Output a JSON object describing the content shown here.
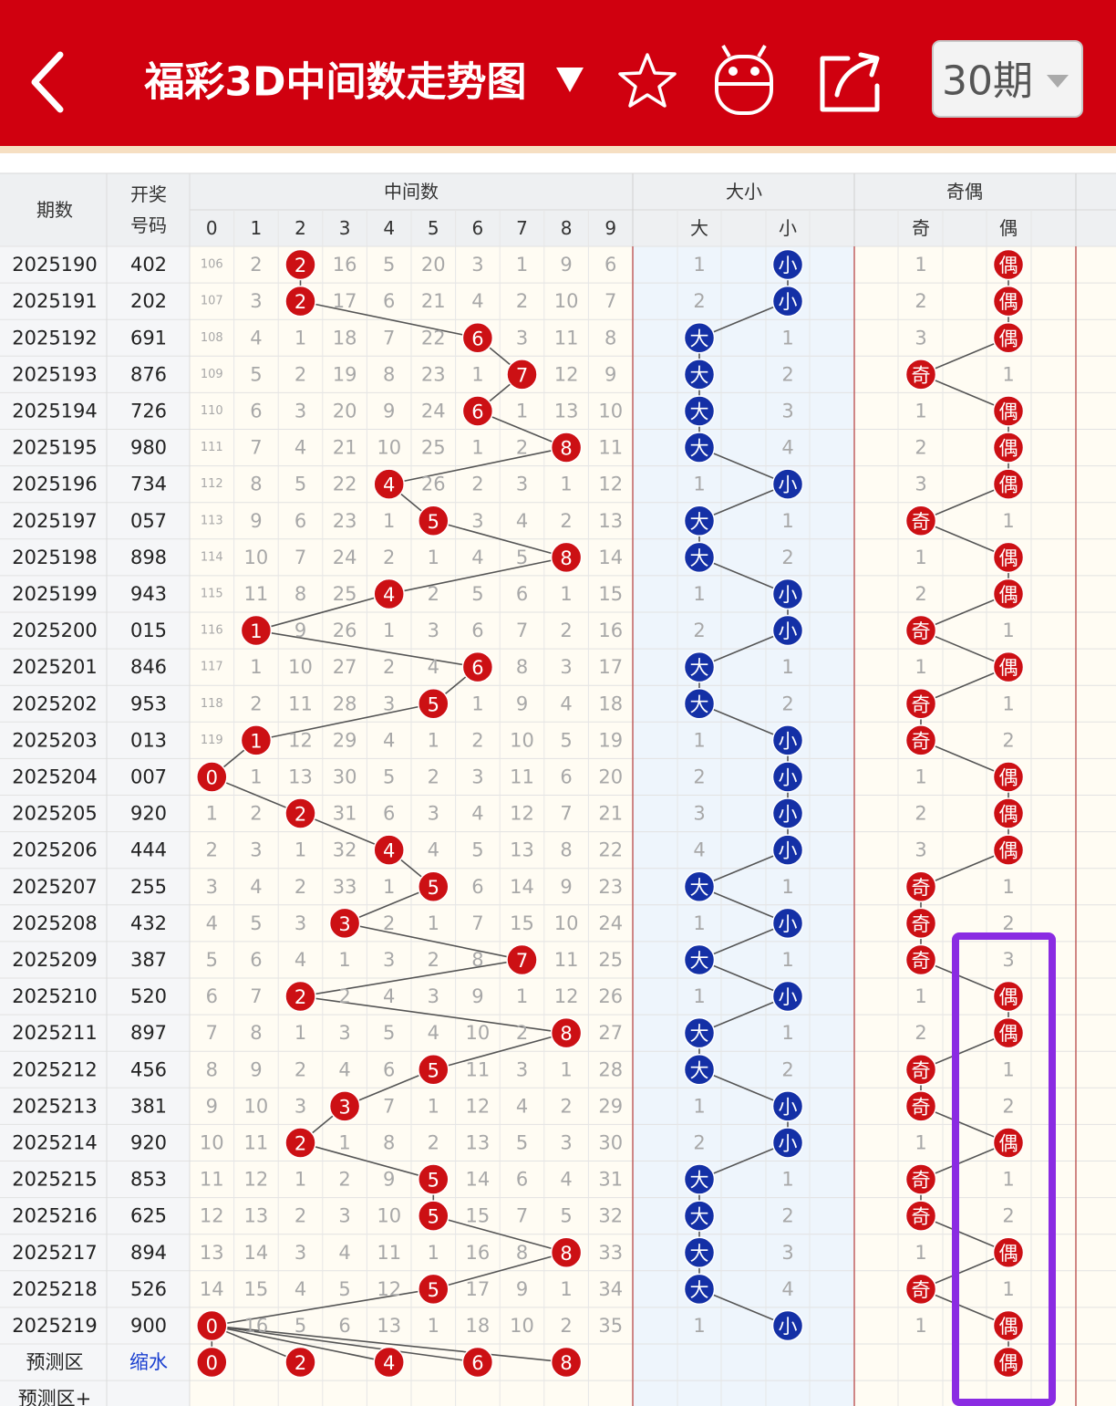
{
  "header": {
    "title": "福彩3D中间数走势图",
    "period_selector": "30期"
  },
  "table": {
    "head": {
      "period": "期数",
      "number": [
        "开奖",
        "号码"
      ],
      "mid_title": "中间数",
      "mid_digits": [
        0,
        1,
        2,
        3,
        4,
        5,
        6,
        7,
        8,
        9
      ],
      "size_title": "大小",
      "size_cols": [
        "大",
        "小"
      ],
      "parity_title": "奇偶",
      "parity_cols": [
        "奇",
        "偶"
      ]
    },
    "rows": [
      {
        "period": "2025190",
        "number": "402",
        "mid": [
          106,
          2,
          "2",
          16,
          5,
          20,
          3,
          1,
          9,
          6
        ],
        "size": [
          1,
          "小"
        ],
        "parity": [
          1,
          "偶"
        ]
      },
      {
        "period": "2025191",
        "number": "202",
        "mid": [
          107,
          3,
          "2",
          17,
          6,
          21,
          4,
          2,
          10,
          7
        ],
        "size": [
          2,
          "小"
        ],
        "parity": [
          2,
          "偶"
        ]
      },
      {
        "period": "2025192",
        "number": "691",
        "mid": [
          108,
          4,
          1,
          18,
          7,
          22,
          "6",
          3,
          11,
          8
        ],
        "size": [
          "大",
          1
        ],
        "parity": [
          3,
          "偶"
        ]
      },
      {
        "period": "2025193",
        "number": "876",
        "mid": [
          109,
          5,
          2,
          19,
          8,
          23,
          1,
          "7",
          12,
          9
        ],
        "size": [
          "大",
          2
        ],
        "parity": [
          "奇",
          1
        ]
      },
      {
        "period": "2025194",
        "number": "726",
        "mid": [
          110,
          6,
          3,
          20,
          9,
          24,
          "6",
          1,
          13,
          10
        ],
        "size": [
          "大",
          3
        ],
        "parity": [
          1,
          "偶"
        ]
      },
      {
        "period": "2025195",
        "number": "980",
        "mid": [
          111,
          7,
          4,
          21,
          10,
          25,
          1,
          2,
          "8",
          11
        ],
        "size": [
          "大",
          4
        ],
        "parity": [
          2,
          "偶"
        ]
      },
      {
        "period": "2025196",
        "number": "734",
        "mid": [
          112,
          8,
          5,
          22,
          "4",
          26,
          2,
          3,
          1,
          12
        ],
        "size": [
          1,
          "小"
        ],
        "parity": [
          3,
          "偶"
        ]
      },
      {
        "period": "2025197",
        "number": "057",
        "mid": [
          113,
          9,
          6,
          23,
          1,
          "5",
          3,
          4,
          2,
          13
        ],
        "size": [
          "大",
          1
        ],
        "parity": [
          "奇",
          1
        ]
      },
      {
        "period": "2025198",
        "number": "898",
        "mid": [
          114,
          10,
          7,
          24,
          2,
          1,
          4,
          5,
          "8",
          14
        ],
        "size": [
          "大",
          2
        ],
        "parity": [
          1,
          "偶"
        ]
      },
      {
        "period": "2025199",
        "number": "943",
        "mid": [
          115,
          11,
          8,
          25,
          "4",
          2,
          5,
          6,
          1,
          15
        ],
        "size": [
          1,
          "小"
        ],
        "parity": [
          2,
          "偶"
        ]
      },
      {
        "period": "2025200",
        "number": "015",
        "mid": [
          116,
          "1",
          9,
          26,
          1,
          3,
          6,
          7,
          2,
          16
        ],
        "size": [
          2,
          "小"
        ],
        "parity": [
          "奇",
          1
        ]
      },
      {
        "period": "2025201",
        "number": "846",
        "mid": [
          117,
          1,
          10,
          27,
          2,
          4,
          "6",
          8,
          3,
          17
        ],
        "size": [
          "大",
          1
        ],
        "parity": [
          1,
          "偶"
        ]
      },
      {
        "period": "2025202",
        "number": "953",
        "mid": [
          118,
          2,
          11,
          28,
          3,
          "5",
          1,
          9,
          4,
          18
        ],
        "size": [
          "大",
          2
        ],
        "parity": [
          "奇",
          1
        ]
      },
      {
        "period": "2025203",
        "number": "013",
        "mid": [
          119,
          "1",
          12,
          29,
          4,
          1,
          2,
          10,
          5,
          19
        ],
        "size": [
          1,
          "小"
        ],
        "parity": [
          "奇",
          2
        ]
      },
      {
        "period": "2025204",
        "number": "007",
        "mid": [
          "0",
          1,
          13,
          30,
          5,
          2,
          3,
          11,
          6,
          20
        ],
        "size": [
          2,
          "小"
        ],
        "parity": [
          1,
          "偶"
        ]
      },
      {
        "period": "2025205",
        "number": "920",
        "mid": [
          1,
          2,
          "2",
          31,
          6,
          3,
          4,
          12,
          7,
          21
        ],
        "size": [
          3,
          "小"
        ],
        "parity": [
          2,
          "偶"
        ]
      },
      {
        "period": "2025206",
        "number": "444",
        "mid": [
          2,
          3,
          1,
          32,
          "4",
          4,
          5,
          13,
          8,
          22
        ],
        "size": [
          4,
          "小"
        ],
        "parity": [
          3,
          "偶"
        ]
      },
      {
        "period": "2025207",
        "number": "255",
        "mid": [
          3,
          4,
          2,
          33,
          1,
          "5",
          6,
          14,
          9,
          23
        ],
        "size": [
          "大",
          1
        ],
        "parity": [
          "奇",
          1
        ]
      },
      {
        "period": "2025208",
        "number": "432",
        "mid": [
          4,
          5,
          3,
          "3",
          2,
          1,
          7,
          15,
          10,
          24
        ],
        "size": [
          1,
          "小"
        ],
        "parity": [
          "奇",
          2
        ]
      },
      {
        "period": "2025209",
        "number": "387",
        "mid": [
          5,
          6,
          4,
          1,
          3,
          2,
          8,
          "7",
          11,
          25
        ],
        "size": [
          "大",
          1
        ],
        "parity": [
          "奇",
          3
        ]
      },
      {
        "period": "2025210",
        "number": "520",
        "mid": [
          6,
          7,
          "2",
          2,
          4,
          3,
          9,
          1,
          12,
          26
        ],
        "size": [
          1,
          "小"
        ],
        "parity": [
          1,
          "偶"
        ]
      },
      {
        "period": "2025211",
        "number": "897",
        "mid": [
          7,
          8,
          1,
          3,
          5,
          4,
          10,
          2,
          "8",
          27
        ],
        "size": [
          "大",
          1
        ],
        "parity": [
          2,
          "偶"
        ]
      },
      {
        "period": "2025212",
        "number": "456",
        "mid": [
          8,
          9,
          2,
          4,
          6,
          "5",
          11,
          3,
          1,
          28
        ],
        "size": [
          "大",
          2
        ],
        "parity": [
          "奇",
          1
        ]
      },
      {
        "period": "2025213",
        "number": "381",
        "mid": [
          9,
          10,
          3,
          "3",
          7,
          1,
          12,
          4,
          2,
          29
        ],
        "size": [
          1,
          "小"
        ],
        "parity": [
          "奇",
          2
        ]
      },
      {
        "period": "2025214",
        "number": "920",
        "mid": [
          10,
          11,
          "2",
          1,
          8,
          2,
          13,
          5,
          3,
          30
        ],
        "size": [
          2,
          "小"
        ],
        "parity": [
          1,
          "偶"
        ]
      },
      {
        "period": "2025215",
        "number": "853",
        "mid": [
          11,
          12,
          1,
          2,
          9,
          "5",
          14,
          6,
          4,
          31
        ],
        "size": [
          "大",
          1
        ],
        "parity": [
          "奇",
          1
        ]
      },
      {
        "period": "2025216",
        "number": "625",
        "mid": [
          12,
          13,
          2,
          3,
          10,
          "5",
          15,
          7,
          5,
          32
        ],
        "size": [
          "大",
          2
        ],
        "parity": [
          "奇",
          2
        ]
      },
      {
        "period": "2025217",
        "number": "894",
        "mid": [
          13,
          14,
          3,
          4,
          11,
          1,
          16,
          8,
          "8",
          33
        ],
        "size": [
          "大",
          3
        ],
        "parity": [
          1,
          "偶"
        ]
      },
      {
        "period": "2025218",
        "number": "526",
        "mid": [
          14,
          15,
          4,
          5,
          12,
          "5",
          17,
          9,
          1,
          34
        ],
        "size": [
          "大",
          4
        ],
        "parity": [
          "奇",
          1
        ]
      },
      {
        "period": "2025219",
        "number": "900",
        "mid": [
          "0",
          16,
          5,
          6,
          13,
          1,
          18,
          10,
          2,
          35
        ],
        "size": [
          1,
          "小"
        ],
        "parity": [
          1,
          "偶"
        ]
      }
    ],
    "forecast": {
      "period": "预测区",
      "number": "缩水",
      "mid": [
        "0",
        null,
        "2",
        null,
        "4",
        null,
        "6",
        null,
        "8",
        null
      ],
      "size": [
        null,
        null
      ],
      "parity": [
        null,
        "偶"
      ]
    },
    "forecast_plus": {
      "period": "预测区+"
    }
  }
}
